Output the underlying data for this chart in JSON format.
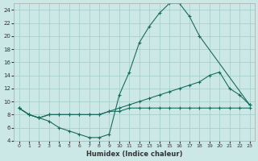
{
  "xlabel": "Humidex (Indice chaleur)",
  "bg_color": "#cce8e6",
  "grid_color": "#aacfcc",
  "line_color": "#1a6b5e",
  "xlim": [
    -0.5,
    23.5
  ],
  "ylim": [
    4,
    25
  ],
  "xticks": [
    0,
    1,
    2,
    3,
    4,
    5,
    6,
    7,
    8,
    9,
    10,
    11,
    12,
    13,
    14,
    15,
    16,
    17,
    18,
    19,
    20,
    21,
    22,
    23
  ],
  "yticks": [
    4,
    6,
    8,
    10,
    12,
    14,
    16,
    18,
    20,
    22,
    24
  ],
  "line1_x": [
    0,
    1,
    2,
    3,
    4,
    5,
    6,
    7,
    8,
    9,
    10,
    11,
    12,
    13,
    14,
    15,
    16,
    17,
    18,
    23
  ],
  "line1_y": [
    9,
    8,
    7.5,
    7,
    6,
    5.5,
    5,
    4.5,
    4.5,
    5,
    11,
    14.5,
    19,
    21.5,
    23.5,
    25,
    25,
    23,
    20,
    9.5
  ],
  "line2_x": [
    0,
    1,
    2,
    3,
    4,
    5,
    6,
    7,
    8,
    9,
    10,
    11,
    12,
    13,
    14,
    15,
    16,
    17,
    18,
    19,
    20,
    21,
    22,
    23
  ],
  "line2_y": [
    9,
    8,
    7.5,
    8,
    8,
    8,
    8,
    8,
    8,
    8.5,
    9,
    9.5,
    10,
    10.5,
    11,
    11.5,
    12,
    12.5,
    13,
    14,
    14.5,
    12,
    11,
    9.5
  ],
  "line3_x": [
    0,
    1,
    2,
    3,
    4,
    5,
    6,
    7,
    8,
    9,
    10,
    11,
    12,
    13,
    14,
    15,
    16,
    17,
    18,
    19,
    20,
    21,
    22,
    23
  ],
  "line3_y": [
    9,
    8,
    7.5,
    8,
    8,
    8,
    8,
    8,
    8,
    8.5,
    8.5,
    9,
    9,
    9,
    9,
    9,
    9,
    9,
    9,
    9,
    9,
    9,
    9,
    9
  ]
}
